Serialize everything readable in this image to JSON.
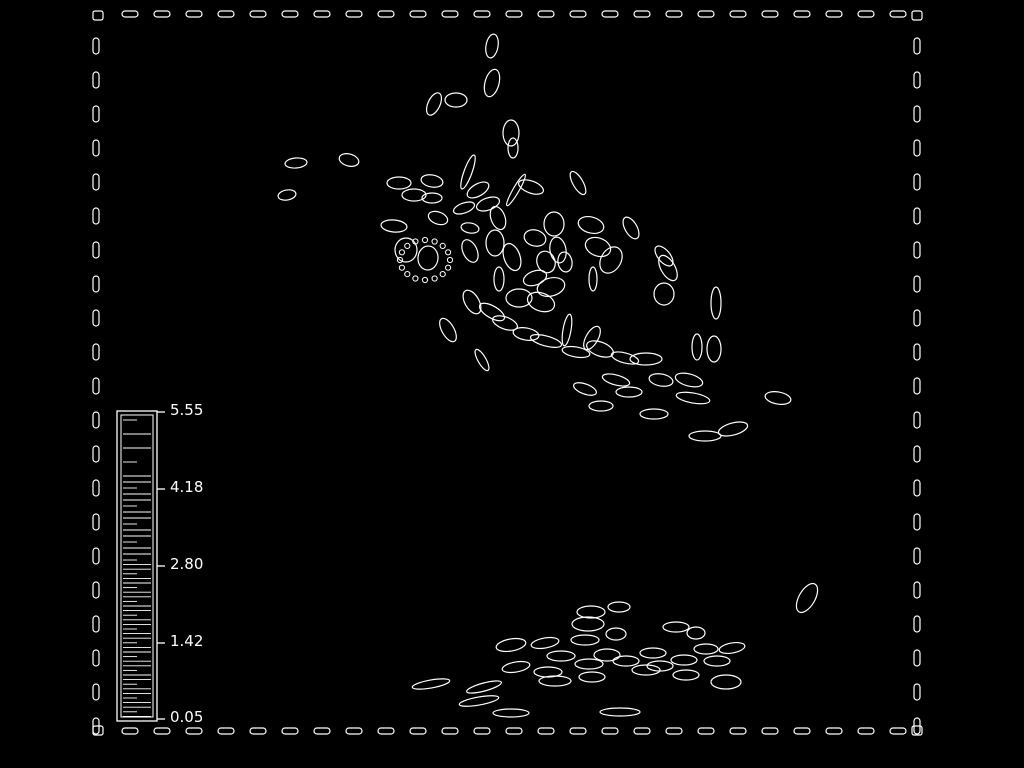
{
  "colors": {
    "background": "#000000",
    "outline": "#ffffff"
  },
  "colorbar": {
    "ticks": [
      "5.55",
      "4.18",
      "2.80",
      "1.42",
      "0.05"
    ],
    "range": [
      0.05,
      5.55
    ],
    "style": "white outlines on black"
  },
  "viewer": {
    "frame": "dashed white border",
    "content": "white elliptical contour outlines (edge-rendered image)"
  }
}
